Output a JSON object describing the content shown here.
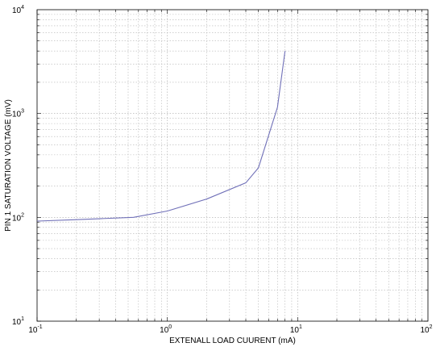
{
  "chart_data": {
    "type": "line",
    "title": "",
    "xlabel": "EXTENALL LOAD CUURENT (mA)",
    "ylabel": "PIN 1 SATURATION VOLTAGE (mV)",
    "x_scale": "log",
    "y_scale": "log",
    "xlim": [
      0.1,
      100
    ],
    "ylim": [
      10,
      10000
    ],
    "x_ticks": [
      {
        "base": "10",
        "exp": "-1"
      },
      {
        "base": "10",
        "exp": "0"
      },
      {
        "base": "10",
        "exp": "1"
      },
      {
        "base": "10",
        "exp": "2"
      }
    ],
    "y_ticks": [
      {
        "base": "10",
        "exp": "1"
      },
      {
        "base": "10",
        "exp": "2"
      },
      {
        "base": "10",
        "exp": "3"
      },
      {
        "base": "10",
        "exp": "4"
      }
    ],
    "grid": true,
    "series": [
      {
        "color": "#7070b8",
        "x": [
          0.1,
          0.2,
          0.3,
          0.55,
          1.0,
          2.0,
          4.0,
          5.0,
          7.0,
          8.0
        ],
        "y": [
          92,
          95,
          97,
          100,
          115,
          150,
          215,
          300,
          1150,
          4000
        ]
      }
    ]
  }
}
